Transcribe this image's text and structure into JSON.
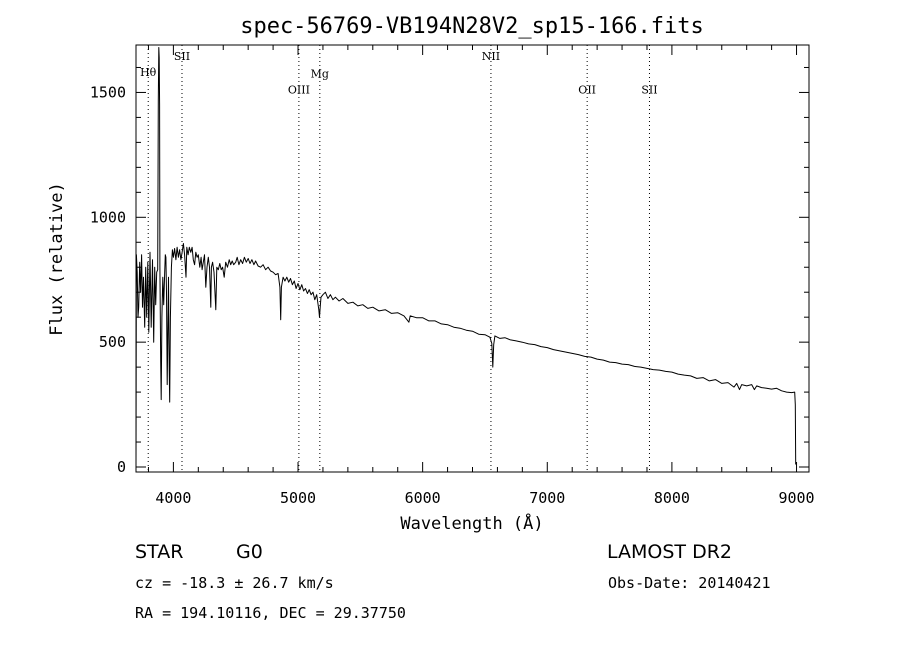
{
  "chart_data": {
    "type": "line",
    "title": "spec-56769-VB194N28V2_sp15-166.fits",
    "xlabel": "Wavelength (Å)",
    "ylabel": "Flux (relative)",
    "xlim": [
      3700,
      9100
    ],
    "ylim": [
      -20,
      1690
    ],
    "xticks": [
      4000,
      5000,
      6000,
      7000,
      8000,
      9000
    ],
    "yticks": [
      0,
      500,
      1000,
      1500
    ],
    "grid": false,
    "line_color": "#000000",
    "reference_lines": [
      {
        "label": "Hθ",
        "x": 3798,
        "label_y": 1565
      },
      {
        "label": "SII",
        "x": 4069,
        "label_y": 1630
      },
      {
        "label": "OIII",
        "x": 5007,
        "label_y": 1495
      },
      {
        "label": "Mg",
        "x": 5175,
        "label_y": 1560
      },
      {
        "label": "NII",
        "x": 6548,
        "label_y": 1630
      },
      {
        "label": "OII",
        "x": 7320,
        "label_y": 1495
      },
      {
        "label": "SII",
        "x": 7820,
        "label_y": 1495
      }
    ],
    "series": [
      {
        "values": [
          [
            3700,
            0
          ],
          [
            3703,
            850
          ],
          [
            3710,
            780
          ],
          [
            3716,
            600
          ],
          [
            3722,
            640
          ],
          [
            3730,
            820
          ],
          [
            3737,
            700
          ],
          [
            3745,
            850
          ],
          [
            3752,
            640
          ],
          [
            3760,
            760
          ],
          [
            3770,
            560
          ],
          [
            3778,
            800
          ],
          [
            3786,
            600
          ],
          [
            3795,
            820
          ],
          [
            3803,
            540
          ],
          [
            3812,
            860
          ],
          [
            3822,
            560
          ],
          [
            3832,
            830
          ],
          [
            3842,
            500
          ],
          [
            3850,
            800
          ],
          [
            3858,
            650
          ],
          [
            3866,
            780
          ],
          [
            3874,
            790
          ],
          [
            3879,
            1470
          ],
          [
            3883,
            1680
          ],
          [
            3886,
            1640
          ],
          [
            3889,
            1450
          ],
          [
            3892,
            800
          ],
          [
            3898,
            420
          ],
          [
            3902,
            270
          ],
          [
            3908,
            600
          ],
          [
            3915,
            760
          ],
          [
            3922,
            650
          ],
          [
            3930,
            780
          ],
          [
            3935,
            850
          ],
          [
            3940,
            840
          ],
          [
            3945,
            700
          ],
          [
            3950,
            330
          ],
          [
            3956,
            560
          ],
          [
            3961,
            760
          ],
          [
            3966,
            400
          ],
          [
            3970,
            260
          ],
          [
            3976,
            600
          ],
          [
            3984,
            800
          ],
          [
            3992,
            870
          ],
          [
            4000,
            840
          ],
          [
            4010,
            875
          ],
          [
            4020,
            830
          ],
          [
            4030,
            880
          ],
          [
            4040,
            840
          ],
          [
            4050,
            870
          ],
          [
            4060,
            830
          ],
          [
            4070,
            860
          ],
          [
            4080,
            895
          ],
          [
            4090,
            850
          ],
          [
            4101,
            760
          ],
          [
            4108,
            880
          ],
          [
            4118,
            850
          ],
          [
            4128,
            880
          ],
          [
            4140,
            860
          ],
          [
            4150,
            880
          ],
          [
            4160,
            830
          ],
          [
            4170,
            810
          ],
          [
            4180,
            860
          ],
          [
            4190,
            840
          ],
          [
            4200,
            850
          ],
          [
            4212,
            800
          ],
          [
            4222,
            840
          ],
          [
            4230,
            790
          ],
          [
            4240,
            820
          ],
          [
            4250,
            850
          ],
          [
            4260,
            720
          ],
          [
            4270,
            800
          ],
          [
            4280,
            840
          ],
          [
            4290,
            800
          ],
          [
            4300,
            640
          ],
          [
            4305,
            800
          ],
          [
            4315,
            820
          ],
          [
            4326,
            780
          ],
          [
            4340,
            630
          ],
          [
            4348,
            800
          ],
          [
            4360,
            790
          ],
          [
            4372,
            815
          ],
          [
            4384,
            790
          ],
          [
            4395,
            800
          ],
          [
            4408,
            760
          ],
          [
            4420,
            820
          ],
          [
            4434,
            800
          ],
          [
            4448,
            830
          ],
          [
            4460,
            810
          ],
          [
            4472,
            825
          ],
          [
            4484,
            810
          ],
          [
            4500,
            820
          ],
          [
            4512,
            840
          ],
          [
            4526,
            810
          ],
          [
            4540,
            830
          ],
          [
            4555,
            815
          ],
          [
            4570,
            840
          ],
          [
            4585,
            820
          ],
          [
            4600,
            835
          ],
          [
            4615,
            815
          ],
          [
            4630,
            830
          ],
          [
            4646,
            810
          ],
          [
            4660,
            825
          ],
          [
            4680,
            805
          ],
          [
            4700,
            800
          ],
          [
            4720,
            810
          ],
          [
            4740,
            790
          ],
          [
            4760,
            800
          ],
          [
            4780,
            785
          ],
          [
            4800,
            780
          ],
          [
            4820,
            770
          ],
          [
            4840,
            775
          ],
          [
            4855,
            720
          ],
          [
            4861,
            590
          ],
          [
            4867,
            720
          ],
          [
            4880,
            760
          ],
          [
            4895,
            745
          ],
          [
            4910,
            760
          ],
          [
            4925,
            740
          ],
          [
            4940,
            755
          ],
          [
            4955,
            730
          ],
          [
            4970,
            745
          ],
          [
            4985,
            715
          ],
          [
            5000,
            735
          ],
          [
            5015,
            710
          ],
          [
            5030,
            730
          ],
          [
            5045,
            705
          ],
          [
            5060,
            715
          ],
          [
            5075,
            695
          ],
          [
            5090,
            710
          ],
          [
            5105,
            690
          ],
          [
            5120,
            700
          ],
          [
            5135,
            670
          ],
          [
            5150,
            690
          ],
          [
            5167,
            630
          ],
          [
            5172,
            600
          ],
          [
            5178,
            640
          ],
          [
            5184,
            680
          ],
          [
            5200,
            690
          ],
          [
            5220,
            700
          ],
          [
            5240,
            675
          ],
          [
            5260,
            690
          ],
          [
            5280,
            670
          ],
          [
            5300,
            680
          ],
          [
            5330,
            665
          ],
          [
            5360,
            675
          ],
          [
            5400,
            655
          ],
          [
            5440,
            660
          ],
          [
            5480,
            645
          ],
          [
            5520,
            650
          ],
          [
            5560,
            635
          ],
          [
            5600,
            640
          ],
          [
            5650,
            625
          ],
          [
            5700,
            630
          ],
          [
            5750,
            615
          ],
          [
            5800,
            618
          ],
          [
            5850,
            605
          ],
          [
            5890,
            580
          ],
          [
            5900,
            605
          ],
          [
            5950,
            598
          ],
          [
            6000,
            598
          ],
          [
            6050,
            585
          ],
          [
            6100,
            585
          ],
          [
            6150,
            573
          ],
          [
            6200,
            570
          ],
          [
            6250,
            560
          ],
          [
            6300,
            556
          ],
          [
            6350,
            548
          ],
          [
            6400,
            544
          ],
          [
            6450,
            532
          ],
          [
            6500,
            530
          ],
          [
            6540,
            520
          ],
          [
            6555,
            495
          ],
          [
            6563,
            400
          ],
          [
            6570,
            490
          ],
          [
            6580,
            525
          ],
          [
            6620,
            515
          ],
          [
            6660,
            518
          ],
          [
            6700,
            510
          ],
          [
            6750,
            505
          ],
          [
            6800,
            500
          ],
          [
            6850,
            493
          ],
          [
            6900,
            490
          ],
          [
            6950,
            482
          ],
          [
            7000,
            478
          ],
          [
            7050,
            470
          ],
          [
            7100,
            465
          ],
          [
            7150,
            460
          ],
          [
            7200,
            455
          ],
          [
            7250,
            450
          ],
          [
            7300,
            443
          ],
          [
            7350,
            440
          ],
          [
            7400,
            432
          ],
          [
            7450,
            428
          ],
          [
            7500,
            420
          ],
          [
            7550,
            418
          ],
          [
            7600,
            412
          ],
          [
            7650,
            410
          ],
          [
            7700,
            403
          ],
          [
            7750,
            400
          ],
          [
            7800,
            395
          ],
          [
            7850,
            390
          ],
          [
            7900,
            388
          ],
          [
            7950,
            383
          ],
          [
            8000,
            380
          ],
          [
            8050,
            372
          ],
          [
            8100,
            368
          ],
          [
            8150,
            365
          ],
          [
            8200,
            355
          ],
          [
            8250,
            358
          ],
          [
            8300,
            345
          ],
          [
            8350,
            350
          ],
          [
            8400,
            335
          ],
          [
            8450,
            338
          ],
          [
            8498,
            320
          ],
          [
            8520,
            335
          ],
          [
            8542,
            310
          ],
          [
            8560,
            330
          ],
          [
            8600,
            325
          ],
          [
            8640,
            330
          ],
          [
            8662,
            310
          ],
          [
            8680,
            325
          ],
          [
            8720,
            318
          ],
          [
            8760,
            315
          ],
          [
            8800,
            312
          ],
          [
            8840,
            315
          ],
          [
            8880,
            305
          ],
          [
            8920,
            300
          ],
          [
            8960,
            298
          ],
          [
            8985,
            300
          ],
          [
            8990,
            250
          ],
          [
            8993,
            10
          ]
        ]
      }
    ]
  },
  "info": {
    "object_class": "STAR",
    "subclass": "G0",
    "survey": "LAMOST DR2",
    "redshift": "cz = -18.3 ± 26.7 km/s",
    "obs_date": "Obs-Date: 20140421",
    "coords": "RA = 194.10116, DEC =  29.37750"
  }
}
